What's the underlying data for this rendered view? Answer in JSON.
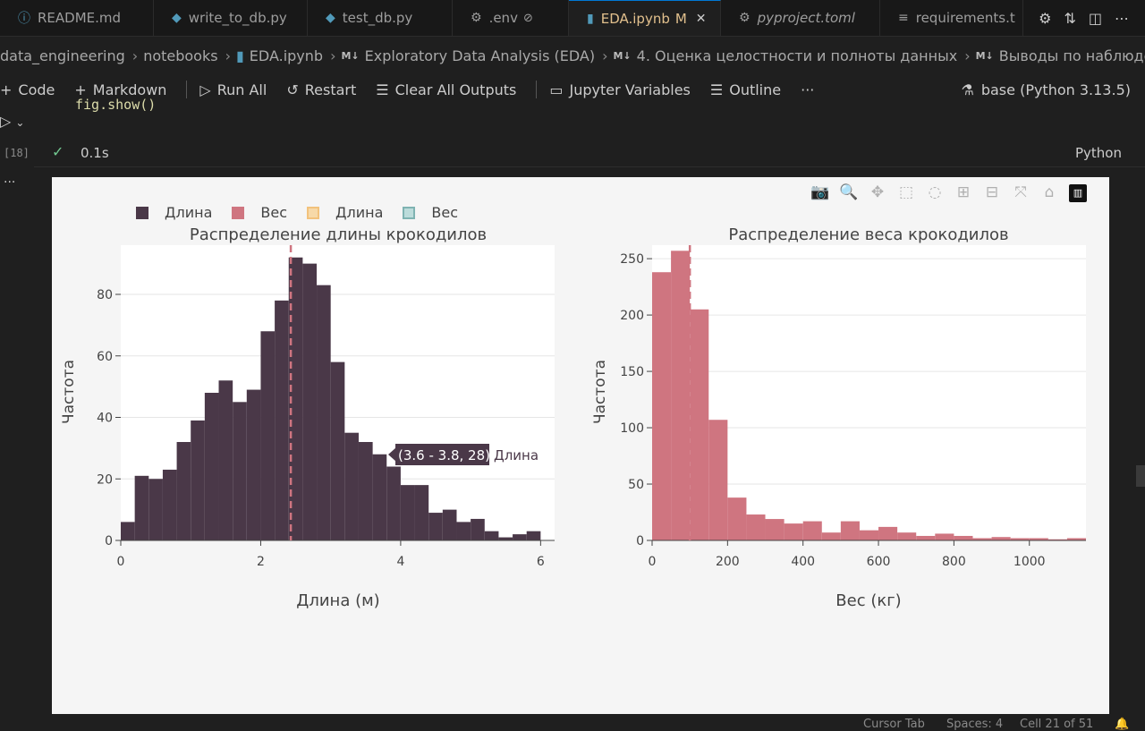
{
  "tabs": [
    {
      "label": "README.md",
      "icon": "info-icon",
      "icon_color": "#519aba"
    },
    {
      "label": "write_to_db.py",
      "icon": "python-icon",
      "icon_color": "#519aba"
    },
    {
      "label": "test_db.py",
      "icon": "python-icon",
      "icon_color": "#519aba"
    },
    {
      "label": ".env",
      "icon": "gear-icon",
      "icon_color": "#9d9d9d",
      "badge": "⊘"
    },
    {
      "label": "EDA.ipynb",
      "icon": "notebook-icon",
      "icon_color": "#519aba",
      "badge": "M",
      "close": "✕"
    },
    {
      "label": "pyproject.toml",
      "icon": "gear-icon",
      "icon_color": "#9d9d9d"
    },
    {
      "label": "requirements.t",
      "icon": "lines-icon",
      "icon_color": "#9d9d9d"
    }
  ],
  "breadcrumb": {
    "items": [
      "data_engineering",
      "notebooks",
      "EDA.ipynb",
      "Exploratory Data Analysis (EDA)",
      "4. Оценка целостности и полноты данных",
      "Выводы по наблюдениям"
    ],
    "md_badge": "M↓"
  },
  "toolbar": {
    "code": "Code",
    "markdown": "Markdown",
    "run_all": "Run All",
    "restart": "Restart",
    "clear_all": "Clear All Outputs",
    "variables": "Jupyter Variables",
    "outline": "Outline",
    "more": "···",
    "kernel": "base (Python 3.13.5)"
  },
  "cell": {
    "code_line": "fig.show()",
    "exec_count": "[18]",
    "timing": "0.1s",
    "language": "Python",
    "ellipsis": "···"
  },
  "legend": [
    {
      "label": "Длина",
      "color": "#4a3848",
      "style": "filled"
    },
    {
      "label": "Вес",
      "color": "#cf7580",
      "style": "filled"
    },
    {
      "label": "Длина",
      "color": "#f2c27c",
      "style": "outline"
    },
    {
      "label": "Вес",
      "color": "#8fc6c5",
      "style": "outline"
    }
  ],
  "tooltip": {
    "text": "(3.6 - 3.8, 28)",
    "series": "Длина"
  },
  "statusbar": {
    "cursor_tab": "Cursor Tab",
    "spaces": "Spaces: 4",
    "cell": "Cell 21 of 51"
  },
  "chart_data": [
    {
      "type": "bar",
      "title": "Распределение длины крокодилов",
      "xlabel": "Длина (м)",
      "ylabel": "Частота",
      "series_name": "Длина",
      "color": "#4a3848",
      "bin_width": 0.2,
      "bin_start": 0,
      "values": [
        6,
        21,
        20,
        23,
        32,
        39,
        48,
        52,
        45,
        49,
        68,
        78,
        92,
        90,
        83,
        58,
        35,
        32,
        28,
        24,
        18,
        18,
        9,
        10,
        6,
        7,
        3,
        1,
        2,
        3
      ],
      "xlim": [
        0,
        6.2
      ],
      "ylim": [
        0,
        96
      ],
      "xticks": [
        0,
        2,
        4,
        6
      ],
      "yticks": [
        0,
        20,
        40,
        60,
        80
      ],
      "vline": 2.43
    },
    {
      "type": "bar",
      "title": "Распределение веса крокодилов",
      "xlabel": "Вес (кг)",
      "ylabel": "Частота",
      "series_name": "Вес",
      "color": "#cf7580",
      "bin_width": 50,
      "bin_start": 0,
      "values": [
        238,
        257,
        205,
        107,
        38,
        23,
        19,
        15,
        17,
        7,
        17,
        9,
        12,
        7,
        4,
        6,
        4,
        2,
        3,
        2,
        2,
        1,
        2
      ],
      "xlim": [
        0,
        1150
      ],
      "ylim": [
        0,
        262
      ],
      "xticks": [
        0,
        200,
        400,
        600,
        800,
        1000
      ],
      "yticks": [
        0,
        50,
        100,
        150,
        200,
        250
      ],
      "vline": 100
    }
  ]
}
